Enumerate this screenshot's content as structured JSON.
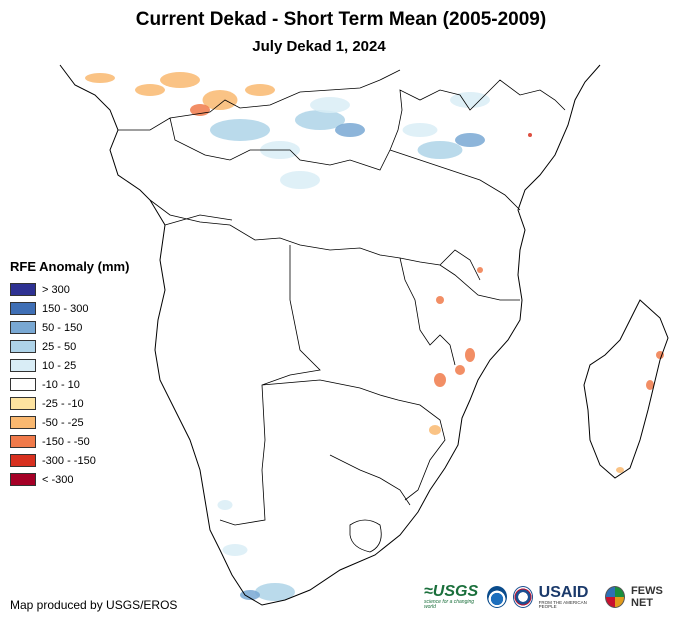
{
  "title": "Current Dekad - Short Term Mean (2005-2009)",
  "subtitle": "July Dekad 1, 2024",
  "legend": {
    "title": "RFE Anomaly (mm)",
    "items": [
      {
        "label": "> 300",
        "color": "#2e3192"
      },
      {
        "label": "150 - 300",
        "color": "#3f6fb5"
      },
      {
        "label": "50 - 150",
        "color": "#79a8d3"
      },
      {
        "label": "25 - 50",
        "color": "#aed3e8"
      },
      {
        "label": "10 - 25",
        "color": "#d9edf6"
      },
      {
        "label": "-10 - 10",
        "color": "#ffffff"
      },
      {
        "label": "-25 - -10",
        "color": "#fde3a0"
      },
      {
        "label": "-50 - -25",
        "color": "#f9b870"
      },
      {
        "label": "-150 - -50",
        "color": "#f07a4a"
      },
      {
        "label": "-300 - -150",
        "color": "#d7301f"
      },
      {
        "label": "< -300",
        "color": "#a50026"
      }
    ]
  },
  "credit": "Map produced by USGS/EROS",
  "logos": {
    "usgs": "≈USGS",
    "usgs_tagline": "science for a changing world",
    "noaa": "noaa-seal",
    "usaid": "USAID",
    "usaid_tagline": "FROM THE AMERICAN PEOPLE",
    "fews": "FEWS NET"
  }
}
